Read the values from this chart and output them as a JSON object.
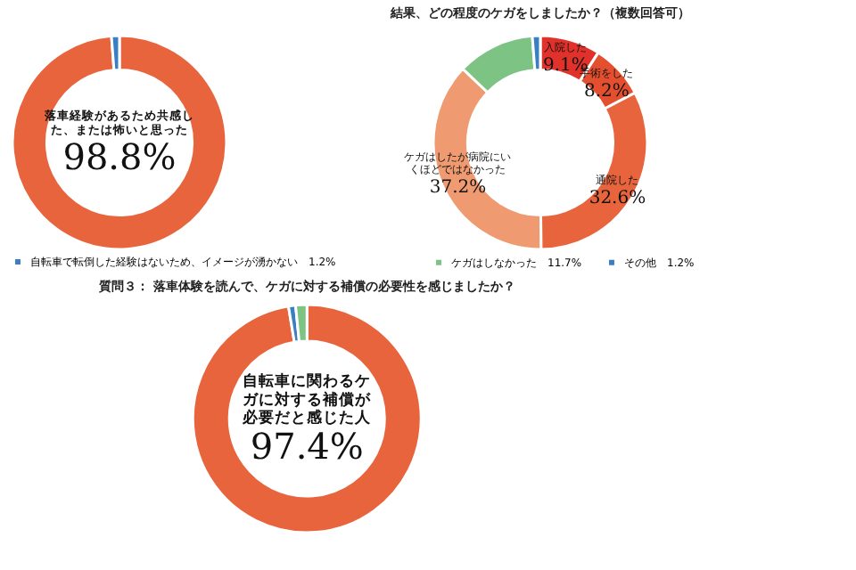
{
  "chart_data": [
    {
      "type": "donut",
      "categories": [
        "落車経験があるため共感した、または怖いと思った",
        "自転車で転倒した経験はないため、イメージが湧かない　1.2%"
      ],
      "values": [
        98.8,
        1.2
      ],
      "colors": [
        "#e8643c",
        "#3a7fc4"
      ],
      "value_labels": [
        "98.8%",
        null
      ],
      "legend": "bottom"
    },
    {
      "type": "donut",
      "title": "結果、どの程度のケガをしましたか？（複数回答可）",
      "categories": [
        "入院した",
        "手術をした",
        "通院した",
        "ケガはしたが病院にいくほどではなかった",
        "ケガはしなかった　11.7%",
        "その他　1.2%"
      ],
      "values": [
        9.1,
        8.2,
        32.6,
        37.2,
        11.7,
        1.2
      ],
      "colors": [
        "#e0322a",
        "#e4502f",
        "#e8643c",
        "#ef9a70",
        "#7dc383",
        "#3a7fc4"
      ],
      "value_labels": [
        "9.1%",
        "8.2%",
        "32.6%",
        "37.2%",
        null,
        null
      ],
      "legend": "bottom"
    },
    {
      "type": "donut",
      "title": "質問３： 落車体験を読んで、ケガに対する補償の必要性を感じましたか？",
      "categories": [
        "自転車に関わるケガに対する補償が必要だと感じた人",
        null,
        null
      ],
      "values": [
        97.4,
        1.0,
        1.6
      ],
      "colors": [
        "#e8643c",
        "#3a7fc4",
        "#7dc383"
      ],
      "value_labels": [
        "97.4%",
        null,
        null
      ]
    }
  ]
}
